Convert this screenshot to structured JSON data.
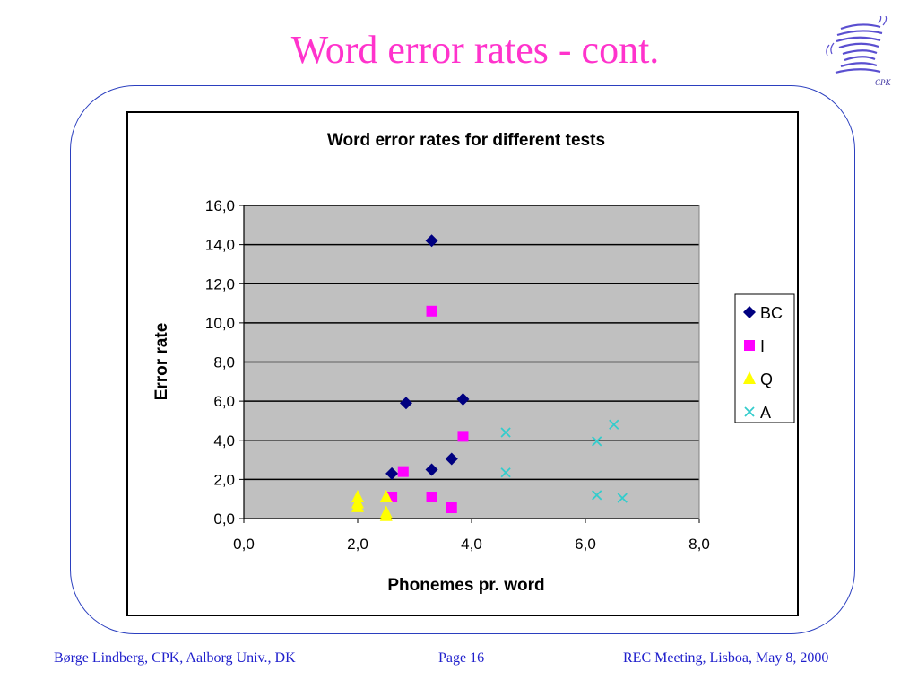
{
  "slide": {
    "title": "Word error rates - cont.",
    "logo_text": "CPK"
  },
  "footer": {
    "left": "Børge Lindberg, CPK, Aalborg Univ., DK",
    "middle": "Page 16",
    "right": "REC Meeting, Lisboa, May 8, 2000"
  },
  "colors": {
    "title": "#ff33cc",
    "footer": "#2020cc",
    "frame": "#2b3fbf",
    "plot_bg": "#c0c0c0"
  },
  "chart_data": {
    "type": "scatter",
    "title": "Word error rates for different tests",
    "xlabel": "Phonemes pr. word",
    "ylabel": "Error rate",
    "xlim": [
      0,
      8
    ],
    "ylim": [
      0,
      16
    ],
    "xticks": [
      "0,0",
      "2,0",
      "4,0",
      "6,0",
      "8,0"
    ],
    "yticks": [
      "0,0",
      "2,0",
      "4,0",
      "6,0",
      "8,0",
      "10,0",
      "12,0",
      "14,0",
      "16,0"
    ],
    "grid": "horizontal",
    "legend_position": "right",
    "series": [
      {
        "name": "BC",
        "marker": "diamond",
        "color": "#000080",
        "points": [
          [
            3.3,
            14.2
          ],
          [
            2.85,
            5.9
          ],
          [
            3.85,
            6.1
          ],
          [
            2.6,
            2.3
          ],
          [
            3.3,
            2.5
          ],
          [
            3.65,
            3.05
          ]
        ]
      },
      {
        "name": "I",
        "marker": "square",
        "color": "#ff00ff",
        "points": [
          [
            3.3,
            10.6
          ],
          [
            3.85,
            4.2
          ],
          [
            2.8,
            2.4
          ],
          [
            2.6,
            1.1
          ],
          [
            3.3,
            1.1
          ],
          [
            3.65,
            0.55
          ]
        ]
      },
      {
        "name": "Q",
        "marker": "triangle",
        "color": "#ffff00",
        "points": [
          [
            2.0,
            1.1
          ],
          [
            2.0,
            0.8
          ],
          [
            2.0,
            0.6
          ],
          [
            2.5,
            1.1
          ],
          [
            2.5,
            0.3
          ],
          [
            2.5,
            0.15
          ]
        ]
      },
      {
        "name": "A",
        "marker": "x",
        "color": "#33cccc",
        "points": [
          [
            4.6,
            4.4
          ],
          [
            4.6,
            2.35
          ],
          [
            6.2,
            3.95
          ],
          [
            6.5,
            4.8
          ],
          [
            6.2,
            1.2
          ],
          [
            6.65,
            1.05
          ]
        ]
      }
    ]
  }
}
